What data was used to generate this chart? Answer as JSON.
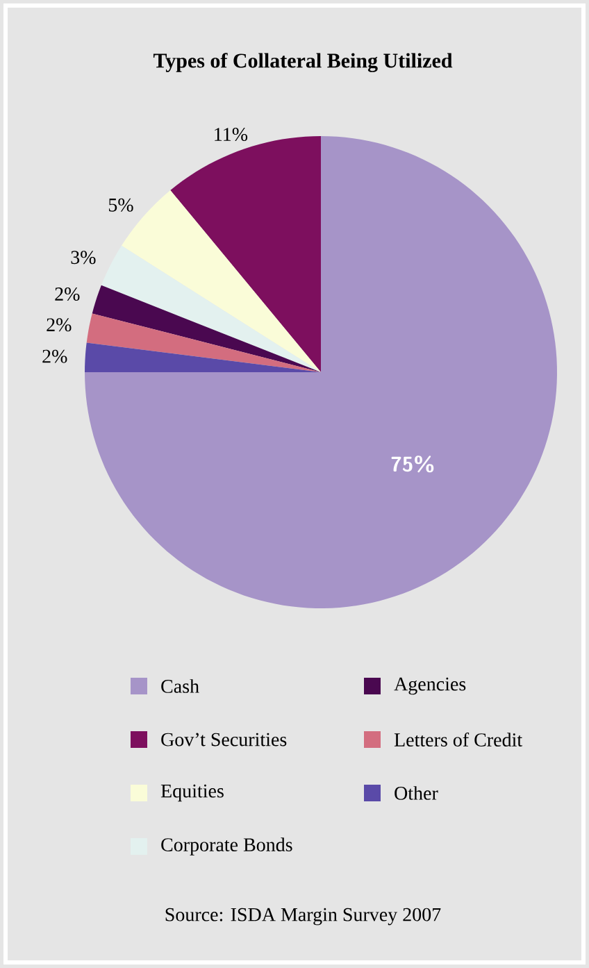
{
  "chart_data": {
    "type": "pie",
    "title": "Types of Collateral Being Utilized",
    "categories": [
      "Cash",
      "Gov’t Securities",
      "Equities",
      "Corporate Bonds",
      "Agencies",
      "Letters of Credit",
      "Other"
    ],
    "values": [
      75,
      11,
      5,
      3,
      2,
      2,
      2
    ],
    "value_labels": [
      "75%",
      "11%",
      "5%",
      "3%",
      "2%",
      "2%",
      "2%"
    ],
    "colors": [
      "#a694c8",
      "#7d0f5e",
      "#fafcd8",
      "#e3f1ef",
      "#4a0850",
      "#d36d7f",
      "#5a4aa8"
    ],
    "legend": "bottom",
    "annotations": [
      "Source: ISDA Margin Survey 2007"
    ]
  }
}
